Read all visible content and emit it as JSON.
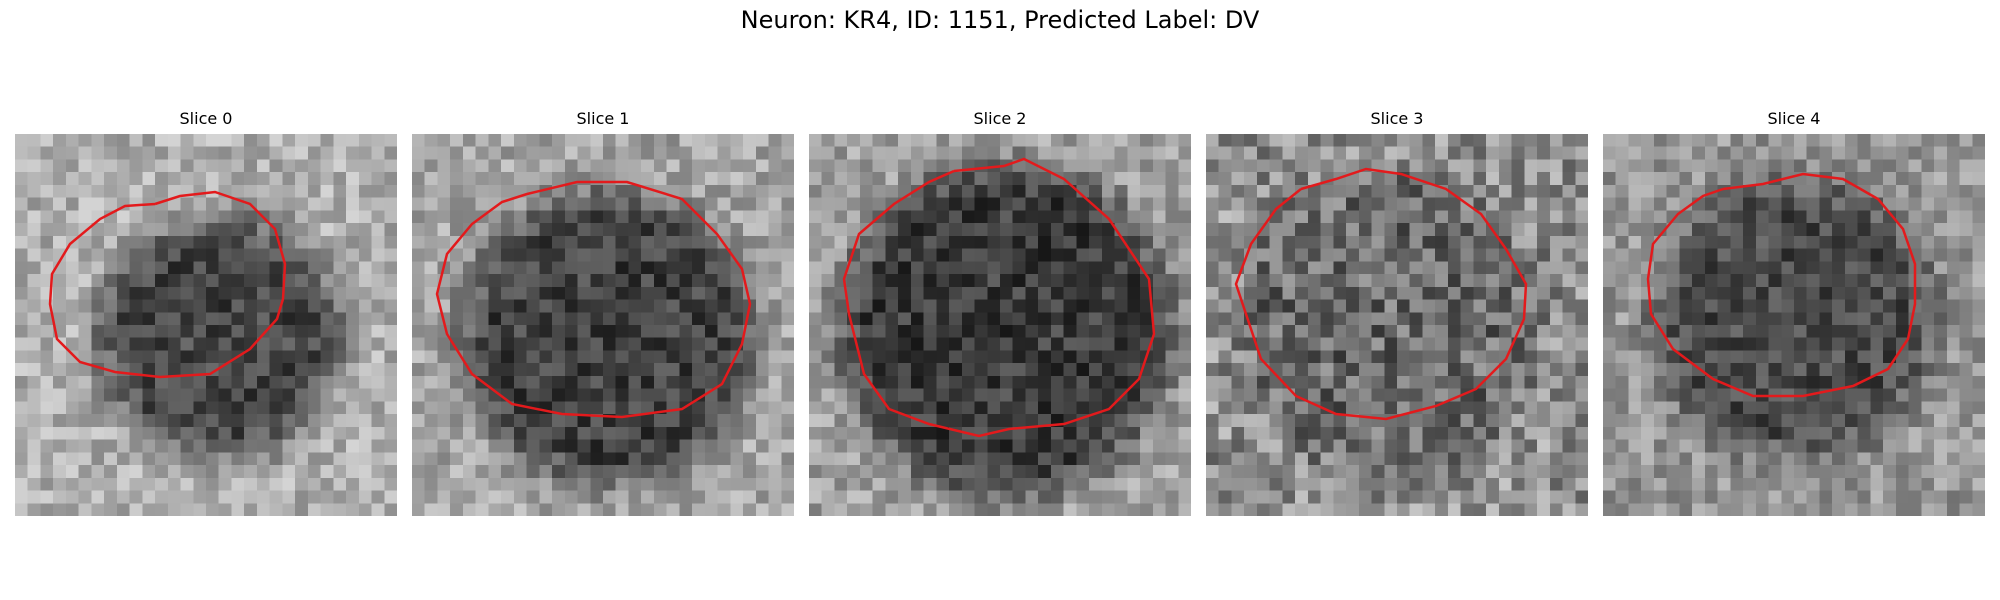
{
  "title": "Neuron: KR4, ID: 1151, Predicted Label: DV",
  "contour_color": "#e31a1c",
  "panels": [
    {
      "label": "Slice 0"
    },
    {
      "label": "Slice 1"
    },
    {
      "label": "Slice 2"
    },
    {
      "label": "Slice 3"
    },
    {
      "label": "Slice 4"
    }
  ]
}
